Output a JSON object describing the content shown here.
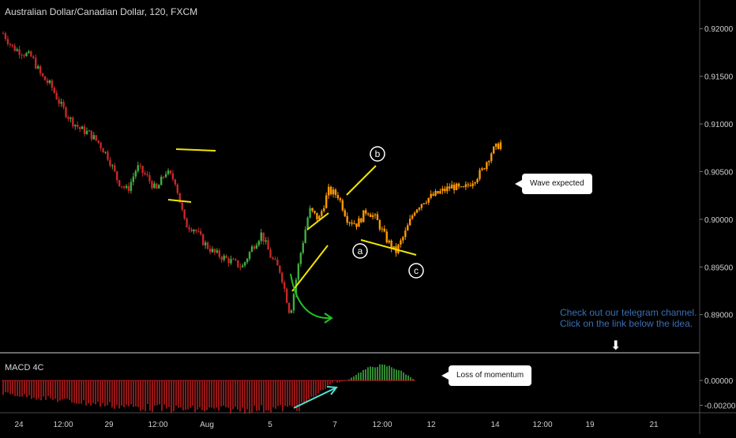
{
  "chart_data": [
    {
      "type": "candlestick",
      "title": "Australian Dollar/Canadian Dollar, 120, FXCM",
      "x_ticks": [
        "24",
        "12:00",
        "29",
        "12:00",
        "Aug",
        "5",
        "7",
        "12:00",
        "12",
        "14",
        "12:00",
        "19",
        "21"
      ],
      "y_ticks": [
        0.92,
        0.915,
        0.91,
        0.905,
        0.9,
        0.895,
        0.89
      ],
      "ylim": [
        0.886,
        0.923
      ],
      "price_path_close": [
        0.9195,
        0.918,
        0.9175,
        0.917,
        0.915,
        0.914,
        0.912,
        0.9105,
        0.9095,
        0.909,
        0.908,
        0.9065,
        0.904,
        0.903,
        0.9055,
        0.9045,
        0.903,
        0.905,
        0.904,
        0.8995,
        0.899,
        0.8975,
        0.8965,
        0.896,
        0.8955,
        0.895,
        0.897,
        0.8985,
        0.896,
        0.8945,
        0.89,
        0.896,
        0.901,
        0.9,
        0.903,
        0.9025,
        0.9,
        0.8995,
        0.901,
        0.9,
        0.898,
        0.8965,
        0.8985,
        0.901,
        0.902,
        0.9025,
        0.903,
        0.9035,
        0.903,
        0.904,
        0.905,
        0.907,
        0.908
      ],
      "expected_path_color": "#ff9800",
      "annotations": [
        {
          "text": "a"
        },
        {
          "text": "b"
        },
        {
          "text": "c"
        },
        {
          "text": "Wave expected"
        },
        {
          "text": "Loss of momentum"
        }
      ]
    },
    {
      "type": "bar",
      "title": "MACD 4C",
      "y_ticks": [
        0.0,
        -0.002
      ],
      "ylim": [
        -0.0026,
        0.0021
      ],
      "positive_color": "#3fae3f",
      "negative_color": "#b71c1c"
    }
  ],
  "labels": {
    "telegram_line1": "Check out our telegram channel.",
    "telegram_line2": "Click on the link below the idea.",
    "callout_wave": "Wave expected",
    "callout_momentum": "Loss of momentum"
  },
  "colors": {
    "background": "#000000",
    "up": "#3fae3f",
    "down": "#c62828",
    "expected": "#ff9800",
    "trendline": "#f2e600",
    "arc": "#22c422",
    "momentum_arrow": "#4fe3d6",
    "telegram": "#3b6fb5"
  }
}
